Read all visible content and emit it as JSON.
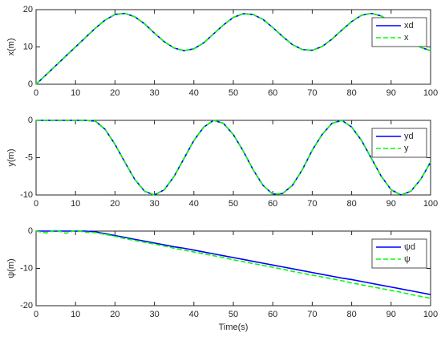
{
  "chart_data": [
    {
      "type": "line",
      "ylabel": "x(m)",
      "x": [
        0,
        2.5,
        5,
        7.5,
        10,
        12.5,
        15,
        17.5,
        20,
        22.5,
        25,
        27.5,
        30,
        32.5,
        35,
        37.5,
        40,
        42.5,
        45,
        47.5,
        50,
        52.5,
        55,
        57.5,
        60,
        62.5,
        65,
        67.5,
        70,
        72.5,
        75,
        77.5,
        80,
        82.5,
        85,
        87.5,
        90,
        92.5,
        95,
        97.5,
        100
      ],
      "series": [
        {
          "name": "xd",
          "color": "#0000ff",
          "linestyle": "solid",
          "values": [
            0,
            2.5,
            5,
            7.5,
            10,
            12.5,
            15.0,
            17.2,
            18.7,
            19.0,
            18.1,
            16.2,
            13.7,
            11.4,
            9.7,
            9.0,
            9.5,
            11.1,
            13.5,
            15.9,
            17.9,
            18.9,
            18.7,
            17.4,
            15.2,
            12.8,
            10.6,
            9.3,
            9.1,
            10.1,
            12.1,
            14.5,
            16.8,
            18.5,
            19.0,
            18.3,
            16.6,
            14.3,
            11.8,
            9.9,
            9.0
          ]
        },
        {
          "name": "x",
          "color": "#00ff00",
          "linestyle": "dashed",
          "values": [
            0,
            2.5,
            5,
            7.5,
            10,
            12.5,
            15.0,
            17.2,
            18.7,
            19.0,
            18.1,
            16.2,
            13.7,
            11.4,
            9.7,
            9.0,
            9.5,
            11.1,
            13.5,
            15.9,
            17.9,
            18.9,
            18.7,
            17.4,
            15.2,
            12.8,
            10.6,
            9.3,
            9.1,
            10.1,
            12.1,
            14.5,
            16.8,
            18.5,
            19.0,
            18.3,
            16.6,
            14.3,
            11.8,
            9.9,
            9.0
          ]
        }
      ],
      "xlim": [
        0,
        100
      ],
      "xticks": [
        0,
        10,
        20,
        30,
        40,
        50,
        60,
        70,
        80,
        90,
        100
      ],
      "ylim": [
        0,
        20
      ],
      "yticks": [
        0,
        10,
        20
      ],
      "legend": "northeast"
    },
    {
      "type": "line",
      "ylabel": "y(m)",
      "x": [
        0,
        2.5,
        5,
        7.5,
        10,
        12.5,
        15,
        17.5,
        20,
        22.5,
        25,
        27.5,
        30,
        32.5,
        35,
        37.5,
        40,
        42.5,
        45,
        47.5,
        50,
        52.5,
        55,
        57.5,
        60,
        62.5,
        65,
        67.5,
        70,
        72.5,
        75,
        77.5,
        80,
        82.5,
        85,
        87.5,
        90,
        92.5,
        95,
        97.5,
        100
      ],
      "series": [
        {
          "name": "yd",
          "color": "#0000ff",
          "linestyle": "solid",
          "values": [
            0,
            0,
            0,
            0,
            0,
            0,
            -0.1,
            -1.2,
            -3.2,
            -5.6,
            -7.9,
            -9.5,
            -10.0,
            -9.3,
            -7.5,
            -5.1,
            -2.7,
            -0.9,
            0.0,
            -0.4,
            -1.9,
            -4.1,
            -6.6,
            -8.7,
            -9.9,
            -9.8,
            -8.7,
            -6.6,
            -4.0,
            -1.9,
            -0.4,
            0.0,
            -0.9,
            -2.7,
            -5.1,
            -7.5,
            -9.3,
            -10.0,
            -9.5,
            -7.9,
            -5.6
          ]
        },
        {
          "name": "y",
          "color": "#00ff00",
          "linestyle": "dashed",
          "values": [
            0,
            0,
            0,
            0,
            0,
            0,
            -0.1,
            -1.2,
            -3.2,
            -5.6,
            -7.9,
            -9.5,
            -10.0,
            -9.3,
            -7.5,
            -5.1,
            -2.7,
            -0.9,
            0.0,
            -0.4,
            -1.9,
            -4.1,
            -6.6,
            -8.7,
            -9.9,
            -9.8,
            -8.7,
            -6.6,
            -4.0,
            -1.9,
            -0.4,
            0.0,
            -0.9,
            -2.7,
            -5.1,
            -7.5,
            -9.3,
            -10.0,
            -9.5,
            -7.9,
            -5.6
          ]
        }
      ],
      "xlim": [
        0,
        100
      ],
      "xticks": [
        0,
        10,
        20,
        30,
        40,
        50,
        60,
        70,
        80,
        90,
        100
      ],
      "ylim": [
        -10,
        0
      ],
      "yticks": [
        -10,
        -5,
        0
      ],
      "legend": "northeast"
    },
    {
      "type": "line",
      "ylabel": "ψ(m)",
      "xlabel": "Time(s)",
      "x": [
        0,
        2.5,
        5,
        7.5,
        10,
        12.5,
        15,
        17.5,
        20,
        22.5,
        25,
        27.5,
        30,
        32.5,
        35,
        37.5,
        40,
        42.5,
        45,
        47.5,
        50,
        52.5,
        55,
        57.5,
        60,
        62.5,
        65,
        67.5,
        70,
        72.5,
        75,
        77.5,
        80,
        82.5,
        85,
        87.5,
        90,
        92.5,
        95,
        97.5,
        100
      ],
      "series": [
        {
          "name": "ψd",
          "color": "#0000ff",
          "linestyle": "solid",
          "values": [
            0,
            0,
            0,
            0,
            0,
            0,
            -0.2,
            -0.7,
            -1.2,
            -1.7,
            -2.2,
            -2.7,
            -3.2,
            -3.7,
            -4.2,
            -4.6,
            -5.1,
            -5.6,
            -6.1,
            -6.6,
            -7.1,
            -7.6,
            -8.1,
            -8.6,
            -9.1,
            -9.6,
            -10.1,
            -10.6,
            -11.1,
            -11.6,
            -12.1,
            -12.6,
            -13.0,
            -13.5,
            -14.0,
            -14.5,
            -15.0,
            -15.5,
            -16.0,
            -16.5,
            -17.0
          ]
        },
        {
          "name": "ψ",
          "color": "#00ff00",
          "linestyle": "dashed",
          "values": [
            0,
            -0.5,
            0.3,
            -0.6,
            0.2,
            -0.3,
            -0.4,
            -0.9,
            -1.4,
            -2.0,
            -2.5,
            -3.0,
            -3.5,
            -4.0,
            -4.6,
            -5.1,
            -5.6,
            -6.1,
            -6.6,
            -7.1,
            -7.7,
            -8.2,
            -8.7,
            -9.2,
            -9.7,
            -10.2,
            -10.8,
            -11.3,
            -11.8,
            -12.3,
            -12.8,
            -13.3,
            -13.9,
            -14.4,
            -14.9,
            -15.4,
            -15.9,
            -16.4,
            -17.0,
            -17.5,
            -18.0
          ]
        }
      ],
      "xlim": [
        0,
        100
      ],
      "xticks": [
        0,
        10,
        20,
        30,
        40,
        50,
        60,
        70,
        80,
        90,
        100
      ],
      "ylim": [
        -20,
        0
      ],
      "yticks": [
        -20,
        -10,
        0
      ],
      "legend": "northeast"
    }
  ]
}
